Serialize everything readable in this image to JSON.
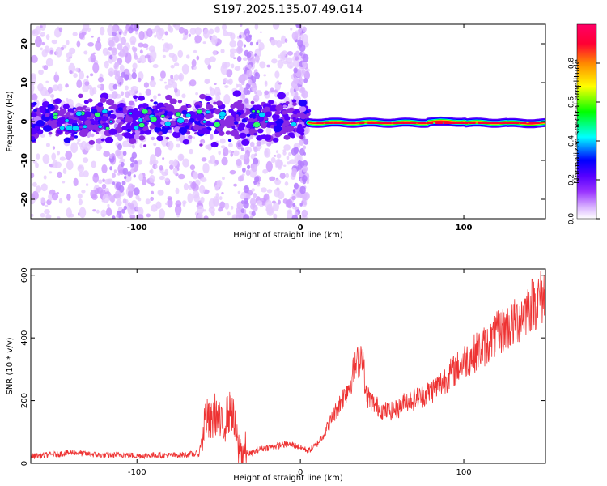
{
  "figure": {
    "title": "S197.2025.135.07.49.G14"
  },
  "chart_data": [
    {
      "type": "heatmap",
      "xlabel": "Height of straight line (km)",
      "ylabel": "Frequency (Hz)",
      "xlim": [
        -165,
        150
      ],
      "ylim": [
        -25,
        25
      ],
      "x_ticks": [
        -100,
        0,
        100
      ],
      "y_ticks": [
        -20,
        -10,
        0,
        10,
        20
      ],
      "grid": false,
      "colorbar": {
        "label": "Normalized spectral amplitude",
        "range": [
          0,
          1
        ],
        "ticks": [
          0.0,
          0.2,
          0.4,
          0.6,
          0.8
        ],
        "tick_labels": [
          "0.0",
          "0.2",
          "0.4",
          "0.6",
          "0.8"
        ],
        "colors": [
          "#ffffff",
          "#9933ff",
          "#5500ff",
          "#0000ff",
          "#00ffff",
          "#00ff00",
          "#ffff00",
          "#ff8800",
          "#ff0033",
          "#ff0066"
        ]
      },
      "band": {
        "noisy_region_x": [
          -165,
          5
        ],
        "noisy_center_freq_hz": 0.5,
        "clean_region_x": [
          5,
          150
        ],
        "clean_center_freq_hz": -0.3,
        "clean_peak_amplitude": 0.9,
        "noisy_peak_amplitude": 0.45
      }
    },
    {
      "type": "line",
      "xlabel": "Height of straight line (km)",
      "ylabel": "SNR (10 * v/v)",
      "xlim": [
        -165,
        150
      ],
      "ylim": [
        0,
        620
      ],
      "x_ticks": [
        -100,
        0,
        100
      ],
      "y_ticks": [
        0,
        200,
        400,
        600
      ],
      "grid": false,
      "series": [
        {
          "color": "#ee3333",
          "x": [
            -165,
            -150,
            -140,
            -130,
            -120,
            -110,
            -100,
            -90,
            -80,
            -70,
            -62,
            -58,
            -55,
            -52,
            -48,
            -45,
            -42,
            -38,
            -35,
            -30,
            -25,
            -20,
            -15,
            -10,
            -5,
            0,
            5,
            10,
            15,
            20,
            25,
            30,
            33,
            36,
            38,
            40,
            45,
            50,
            55,
            60,
            65,
            70,
            75,
            80,
            85,
            90,
            95,
            100,
            105,
            110,
            115,
            120,
            125,
            130,
            135,
            140,
            145,
            150
          ],
          "y": [
            22,
            28,
            35,
            30,
            25,
            28,
            24,
            26,
            25,
            28,
            30,
            150,
            120,
            160,
            110,
            150,
            170,
            40,
            35,
            30,
            45,
            50,
            55,
            60,
            60,
            50,
            40,
            60,
            100,
            150,
            200,
            250,
            300,
            330,
            360,
            220,
            190,
            170,
            165,
            175,
            200,
            205,
            215,
            230,
            250,
            275,
            300,
            325,
            345,
            365,
            380,
            410,
            430,
            440,
            470,
            500,
            520,
            540
          ]
        }
      ]
    }
  ]
}
